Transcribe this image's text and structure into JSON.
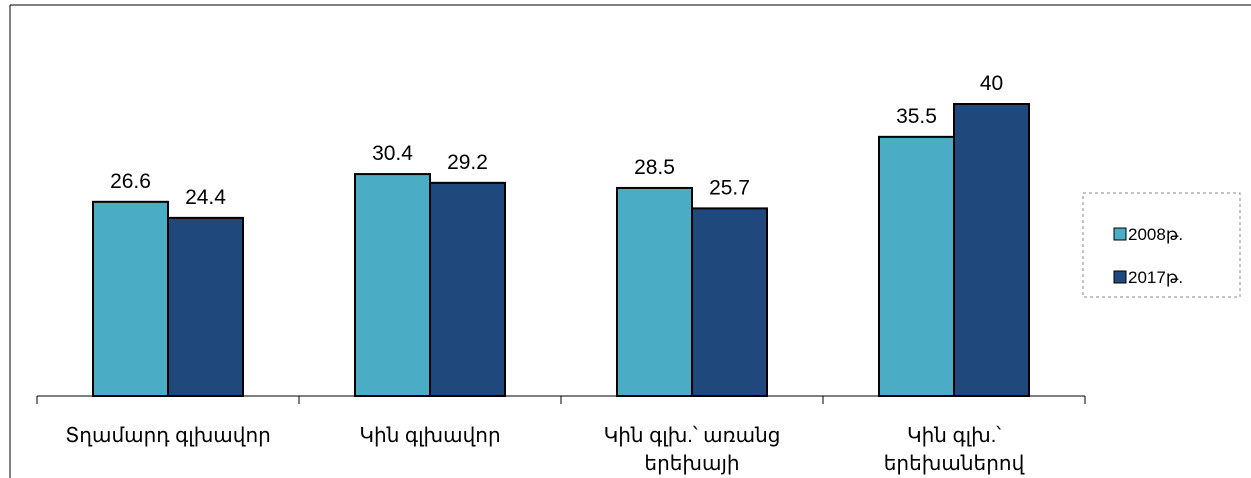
{
  "chart_data": {
    "type": "bar",
    "categories": [
      "Տղամարդ  գլխավոր",
      "Կին գլխավոր",
      "Կին գլխ.՝ առանց\nերեխայի",
      "Կին գլխ.՝\nերեխաներով"
    ],
    "series": [
      {
        "name": "2008թ.",
        "color": "#4bacc6",
        "values": [
          26.6,
          30.4,
          28.5,
          35.5
        ]
      },
      {
        "name": "2017թ.",
        "color": "#1f497d",
        "values": [
          24.4,
          29.2,
          25.7,
          40
        ]
      }
    ],
    "ylim": [
      0,
      40
    ],
    "legend": "right"
  }
}
